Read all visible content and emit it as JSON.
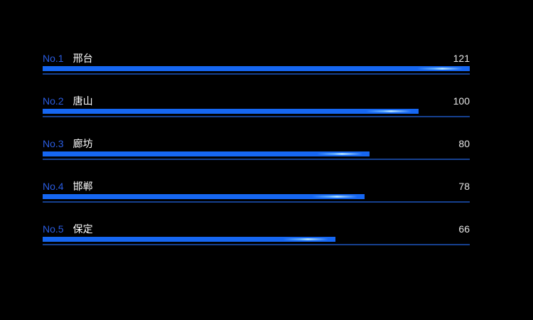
{
  "page": {
    "background": "#000000"
  },
  "chart_data": {
    "type": "bar",
    "orientation": "horizontal",
    "ranks": [
      "No.1",
      "No.2",
      "No.3",
      "No.4",
      "No.5"
    ],
    "categories": [
      "邢台",
      "唐山",
      "廊坊",
      "邯郸",
      "保定"
    ],
    "values": [
      121,
      100,
      80,
      78,
      66
    ],
    "xlim": [
      -54,
      121
    ],
    "grid": false,
    "legend_position": "none",
    "colors": {
      "bar_fill": "#1667f2",
      "bar_glow": "#aadcff",
      "baseline": "#16408f",
      "rank_text": "#2a5ce0",
      "city_text": "#ffffff",
      "value_text": "#e6e6e6",
      "background": "#000000"
    }
  }
}
